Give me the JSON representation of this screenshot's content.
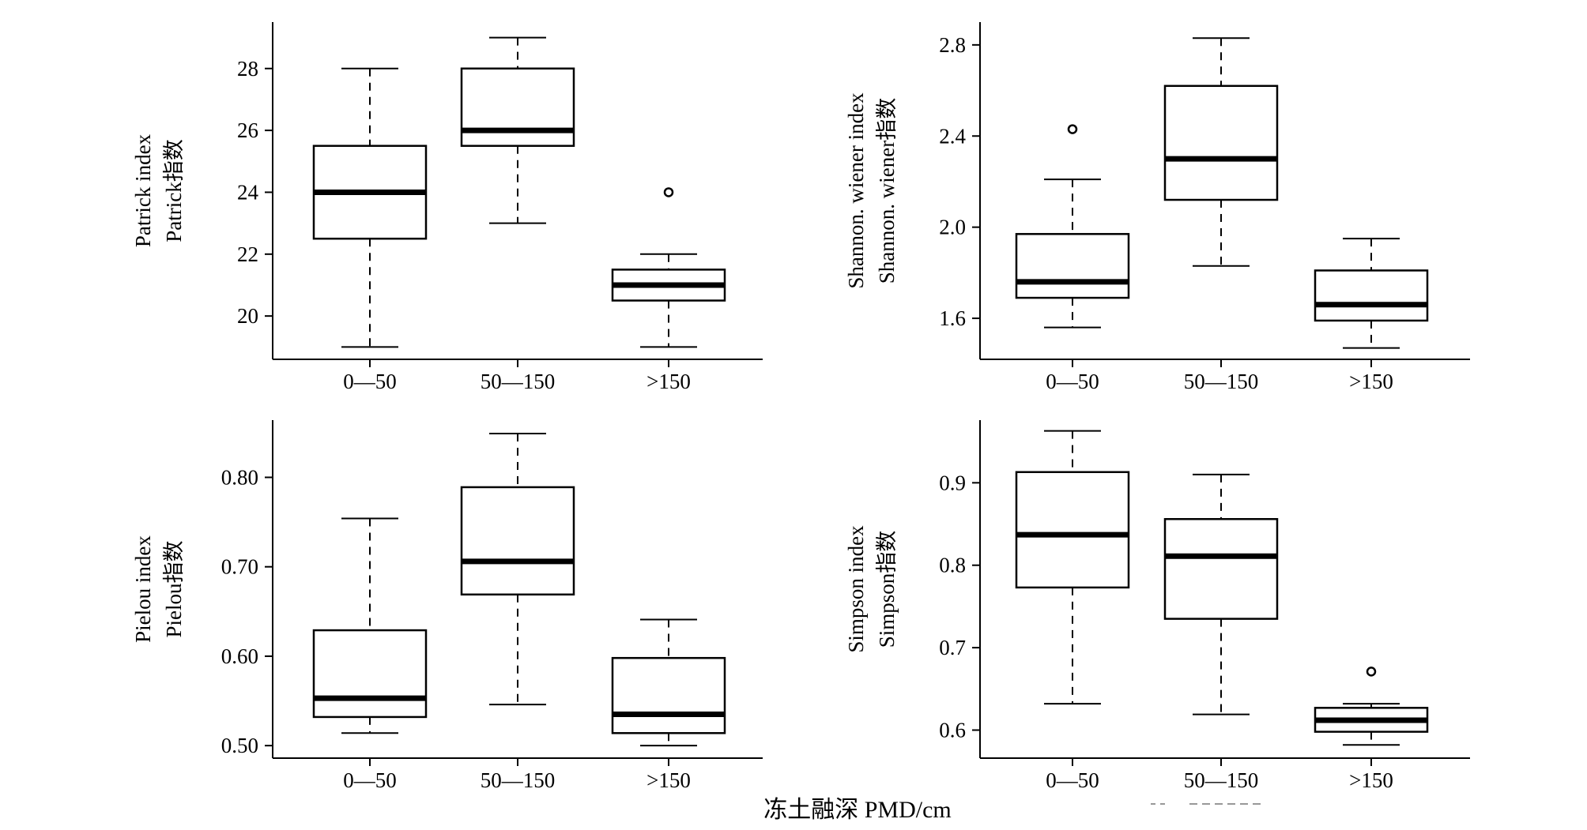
{
  "figure": {
    "xlabel": "冻土融深  PMD/cm"
  },
  "chart_data": [
    {
      "type": "box",
      "panel": "top-left",
      "categories": [
        "0—50",
        "50—150",
        ">150"
      ],
      "ylabel": [
        "Patrick index",
        "Patrick指数"
      ],
      "yticks": [
        20,
        22,
        24,
        26,
        28
      ],
      "ylim": [
        18.6,
        29.5
      ],
      "boxes": [
        {
          "whisker_low": 19,
          "q1": 22.5,
          "median": 24,
          "q3": 25.5,
          "whisker_high": 28,
          "outliers": []
        },
        {
          "whisker_low": 23,
          "q1": 25.5,
          "median": 26,
          "q3": 28,
          "whisker_high": 29,
          "outliers": []
        },
        {
          "whisker_low": 19,
          "q1": 20.5,
          "median": 21,
          "q3": 21.5,
          "whisker_high": 22,
          "outliers": [
            24
          ]
        }
      ]
    },
    {
      "type": "box",
      "panel": "top-right",
      "categories": [
        "0—50",
        "50—150",
        ">150"
      ],
      "ylabel": [
        "Shannon. wiener index",
        "Shannon. wiener指数"
      ],
      "yticks": [
        "1.6",
        "2.0",
        "2.4",
        "2.8"
      ],
      "ylim": [
        1.42,
        2.9
      ],
      "boxes": [
        {
          "whisker_low": 1.56,
          "q1": 1.69,
          "median": 1.76,
          "q3": 1.97,
          "whisker_high": 2.21,
          "outliers": [
            2.43
          ]
        },
        {
          "whisker_low": 1.83,
          "q1": 2.12,
          "median": 2.3,
          "q3": 2.62,
          "whisker_high": 2.83,
          "outliers": []
        },
        {
          "whisker_low": 1.47,
          "q1": 1.59,
          "median": 1.66,
          "q3": 1.81,
          "whisker_high": 1.95,
          "outliers": []
        }
      ]
    },
    {
      "type": "box",
      "panel": "bottom-left",
      "categories": [
        "0—50",
        "50—150",
        ">150"
      ],
      "ylabel": [
        "Pielou index",
        "Pielou指数"
      ],
      "yticks": [
        "0.50",
        "0.60",
        "0.70",
        "0.80"
      ],
      "ylim": [
        0.486,
        0.864
      ],
      "boxes": [
        {
          "whisker_low": 0.514,
          "q1": 0.532,
          "median": 0.553,
          "q3": 0.629,
          "whisker_high": 0.754,
          "outliers": []
        },
        {
          "whisker_low": 0.546,
          "q1": 0.669,
          "median": 0.706,
          "q3": 0.789,
          "whisker_high": 0.849,
          "outliers": []
        },
        {
          "whisker_low": 0.5,
          "q1": 0.514,
          "median": 0.535,
          "q3": 0.598,
          "whisker_high": 0.641,
          "outliers": []
        }
      ]
    },
    {
      "type": "box",
      "panel": "bottom-right",
      "categories": [
        "0—50",
        "50—150",
        ">150"
      ],
      "ylabel": [
        "Simpson index",
        "Simpson指数"
      ],
      "yticks": [
        "0.6",
        "0.7",
        "0.8",
        "0.9"
      ],
      "ylim": [
        0.566,
        0.976
      ],
      "boxes": [
        {
          "whisker_low": 0.632,
          "q1": 0.773,
          "median": 0.837,
          "q3": 0.913,
          "whisker_high": 0.963,
          "outliers": []
        },
        {
          "whisker_low": 0.619,
          "q1": 0.735,
          "median": 0.811,
          "q3": 0.856,
          "whisker_high": 0.91,
          "outliers": []
        },
        {
          "whisker_low": 0.582,
          "q1": 0.598,
          "median": 0.612,
          "q3": 0.627,
          "whisker_high": 0.632,
          "outliers": [
            0.671
          ]
        }
      ]
    }
  ]
}
